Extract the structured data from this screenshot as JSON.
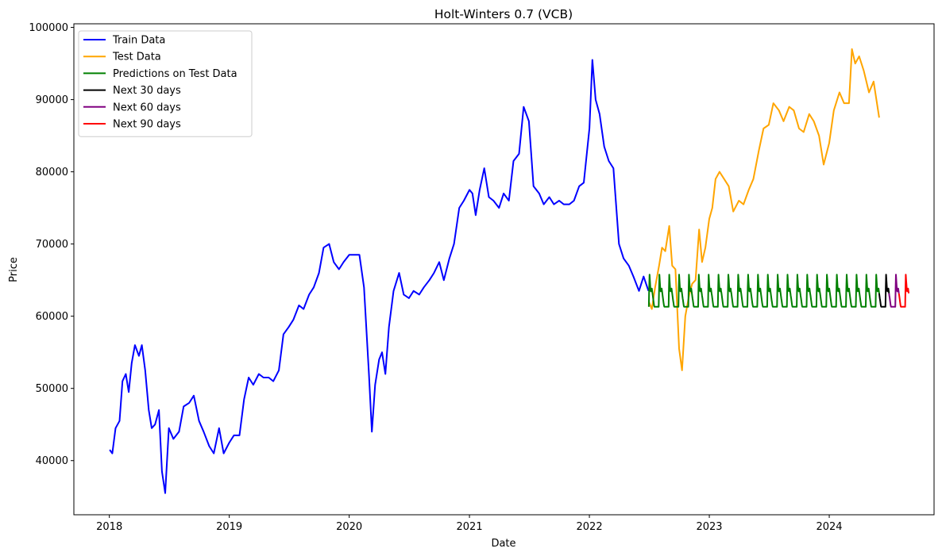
{
  "chart_data": {
    "type": "line",
    "title": "Holt-Winters 0.7 (VCB)",
    "xlabel": "Date",
    "ylabel": "Price",
    "xlim": [
      "2017-09-15",
      "2024-11-15"
    ],
    "ylim": [
      32500,
      100500
    ],
    "x_ticks": [
      "2018",
      "2019",
      "2020",
      "2021",
      "2022",
      "2023",
      "2024"
    ],
    "y_ticks": [
      40000,
      50000,
      60000,
      70000,
      80000,
      90000,
      100000
    ],
    "grid": false,
    "legend_position": "top-left",
    "series": [
      {
        "name": "Train Data",
        "color": "#0000ff",
        "x": [
          "2018-01-02",
          "2018-01-10",
          "2018-01-20",
          "2018-02-01",
          "2018-02-10",
          "2018-02-20",
          "2018-03-01",
          "2018-03-10",
          "2018-03-20",
          "2018-04-01",
          "2018-04-10",
          "2018-04-20",
          "2018-05-01",
          "2018-05-10",
          "2018-05-20",
          "2018-06-01",
          "2018-06-10",
          "2018-06-20",
          "2018-07-01",
          "2018-07-15",
          "2018-08-01",
          "2018-08-15",
          "2018-09-01",
          "2018-09-15",
          "2018-10-01",
          "2018-10-15",
          "2018-11-01",
          "2018-11-15",
          "2018-12-01",
          "2018-12-15",
          "2019-01-01",
          "2019-01-15",
          "2019-02-01",
          "2019-02-15",
          "2019-03-01",
          "2019-03-15",
          "2019-04-01",
          "2019-04-15",
          "2019-05-01",
          "2019-05-15",
          "2019-06-01",
          "2019-06-15",
          "2019-07-01",
          "2019-07-15",
          "2019-08-01",
          "2019-08-15",
          "2019-09-01",
          "2019-09-15",
          "2019-10-01",
          "2019-10-15",
          "2019-11-01",
          "2019-11-15",
          "2019-12-01",
          "2019-12-15",
          "2020-01-01",
          "2020-01-15",
          "2020-02-01",
          "2020-02-15",
          "2020-03-01",
          "2020-03-10",
          "2020-03-20",
          "2020-04-01",
          "2020-04-10",
          "2020-04-20",
          "2020-05-01",
          "2020-05-15",
          "2020-06-01",
          "2020-06-15",
          "2020-07-01",
          "2020-07-15",
          "2020-08-01",
          "2020-08-15",
          "2020-09-01",
          "2020-09-15",
          "2020-10-01",
          "2020-10-15",
          "2020-11-01",
          "2020-11-15",
          "2020-12-01",
          "2020-12-15",
          "2021-01-01",
          "2021-01-10",
          "2021-01-20",
          "2021-02-01",
          "2021-02-15",
          "2021-03-01",
          "2021-03-15",
          "2021-04-01",
          "2021-04-15",
          "2021-05-01",
          "2021-05-15",
          "2021-06-01",
          "2021-06-15",
          "2021-07-01",
          "2021-07-15",
          "2021-08-01",
          "2021-08-15",
          "2021-09-01",
          "2021-09-15",
          "2021-10-01",
          "2021-10-15",
          "2021-11-01",
          "2021-11-15",
          "2021-12-01",
          "2021-12-15",
          "2022-01-01",
          "2022-01-10",
          "2022-01-20",
          "2022-02-01",
          "2022-02-15",
          "2022-03-01",
          "2022-03-15",
          "2022-04-01",
          "2022-04-15",
          "2022-05-01",
          "2022-05-15",
          "2022-06-01",
          "2022-06-15",
          "2022-06-30"
        ],
        "y": [
          41500,
          41000,
          44500,
          45500,
          51000,
          52000,
          49500,
          53500,
          56000,
          54500,
          56000,
          52500,
          47000,
          44500,
          45000,
          47000,
          38500,
          35500,
          44500,
          43000,
          44000,
          47500,
          48000,
          49000,
          45500,
          44000,
          42000,
          41000,
          44500,
          41000,
          42500,
          43500,
          43500,
          48500,
          51500,
          50500,
          52000,
          51500,
          51500,
          51000,
          52500,
          57500,
          58500,
          59500,
          61500,
          61000,
          63000,
          64000,
          66000,
          69500,
          70000,
          67500,
          66500,
          67500,
          68500,
          68500,
          68500,
          64000,
          52000,
          44000,
          50500,
          54000,
          55000,
          52000,
          58500,
          63500,
          66000,
          63000,
          62500,
          63500,
          63000,
          64000,
          65000,
          66000,
          67500,
          65000,
          68000,
          70000,
          75000,
          76000,
          77500,
          77000,
          74000,
          77500,
          80500,
          76500,
          76000,
          75000,
          77000,
          76000,
          81500,
          82500,
          89000,
          87000,
          78000,
          77000,
          75500,
          76500,
          75500,
          76000,
          75500,
          75500,
          76000,
          78000,
          78500,
          86000,
          95500,
          90000,
          88000,
          83500,
          81500,
          80500,
          70000,
          68000,
          67000,
          65500,
          63500,
          65500,
          63500
        ]
      },
      {
        "name": "Test Data",
        "color": "#ffa500",
        "x": [
          "2022-07-01",
          "2022-07-10",
          "2022-07-20",
          "2022-08-01",
          "2022-08-10",
          "2022-08-20",
          "2022-09-01",
          "2022-09-10",
          "2022-09-20",
          "2022-10-01",
          "2022-10-10",
          "2022-10-20",
          "2022-11-01",
          "2022-11-10",
          "2022-11-20",
          "2022-12-01",
          "2022-12-10",
          "2022-12-20",
          "2023-01-01",
          "2023-01-10",
          "2023-01-20",
          "2023-02-01",
          "2023-02-15",
          "2023-03-01",
          "2023-03-15",
          "2023-04-01",
          "2023-04-15",
          "2023-05-01",
          "2023-05-15",
          "2023-06-01",
          "2023-06-15",
          "2023-07-01",
          "2023-07-15",
          "2023-08-01",
          "2023-08-15",
          "2023-09-01",
          "2023-09-15",
          "2023-10-01",
          "2023-10-15",
          "2023-11-01",
          "2023-11-15",
          "2023-12-01",
          "2023-12-15",
          "2024-01-01",
          "2024-01-15",
          "2024-02-01",
          "2024-02-15",
          "2024-03-01",
          "2024-03-10",
          "2024-03-20",
          "2024-04-01",
          "2024-04-15",
          "2024-05-01",
          "2024-05-15",
          "2024-06-01"
        ],
        "y": [
          62000,
          61000,
          64000,
          67000,
          69500,
          69000,
          72500,
          67000,
          66500,
          55500,
          52500,
          60000,
          63000,
          64500,
          65000,
          72000,
          67500,
          69500,
          73500,
          75000,
          79000,
          80000,
          79000,
          78000,
          74500,
          76000,
          75500,
          77500,
          79000,
          83000,
          86000,
          86500,
          89500,
          88500,
          87000,
          89000,
          88500,
          86000,
          85500,
          88000,
          87000,
          85000,
          81000,
          84000,
          88500,
          91000,
          89500,
          89500,
          97000,
          95000,
          96000,
          94000,
          91000,
          92500,
          87500
        ]
      },
      {
        "name": "Predictions on Test Data",
        "color": "#008000",
        "x_start": "2022-07-01",
        "x_end": "2024-06-01",
        "y_min": 61300,
        "y_max": 65900,
        "period_days": 30
      },
      {
        "name": "Next 30 days",
        "color": "#000000",
        "x_start": "2024-06-01",
        "x_end": "2024-07-01",
        "y_min": 61300,
        "y_max": 65900
      },
      {
        "name": "Next 60 days",
        "color": "#800080",
        "x_start": "2024-07-01",
        "x_end": "2024-07-31",
        "y_min": 61300,
        "y_max": 65900
      },
      {
        "name": "Next 90 days",
        "color": "#ff0000",
        "x_start": "2024-07-31",
        "x_end": "2024-08-30",
        "y_min": 61300,
        "y_max": 65900
      }
    ]
  }
}
